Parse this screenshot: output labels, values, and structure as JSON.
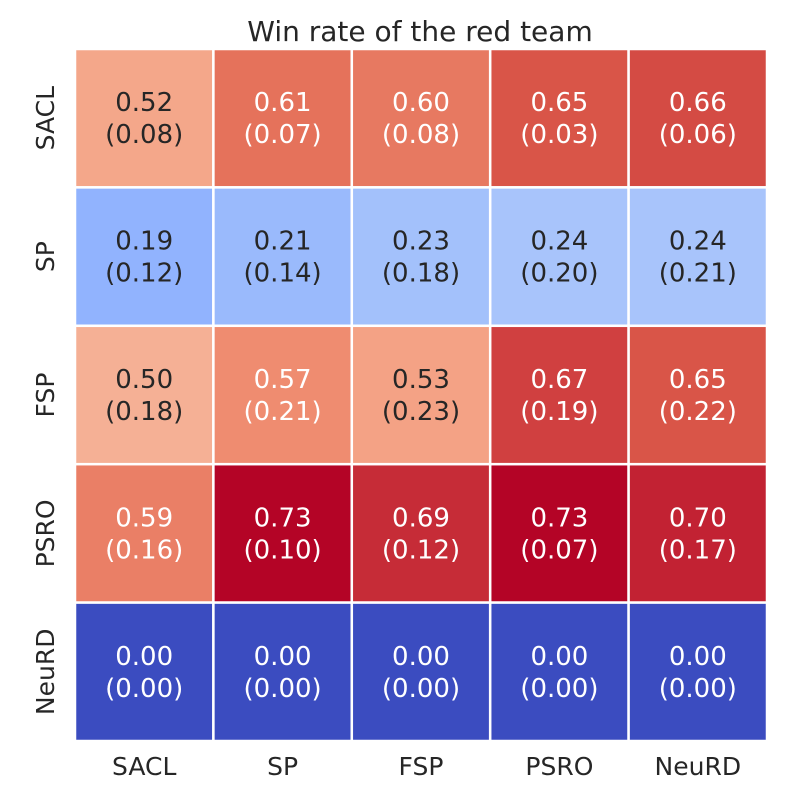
{
  "chart_data": {
    "type": "heatmap",
    "title": "Win rate of the red team",
    "xlabel": "",
    "ylabel": "",
    "x_categories": [
      "SACL",
      "SP",
      "FSP",
      "PSRO",
      "NeuRD"
    ],
    "y_categories": [
      "SACL",
      "SP",
      "FSP",
      "PSRO",
      "NeuRD"
    ],
    "values": [
      [
        0.52,
        0.61,
        0.6,
        0.65,
        0.66
      ],
      [
        0.19,
        0.21,
        0.23,
        0.24,
        0.24
      ],
      [
        0.5,
        0.57,
        0.53,
        0.67,
        0.65
      ],
      [
        0.59,
        0.73,
        0.69,
        0.73,
        0.7
      ],
      [
        0.0,
        0.0,
        0.0,
        0.0,
        0.0
      ]
    ],
    "std": [
      [
        0.08,
        0.07,
        0.08,
        0.03,
        0.06
      ],
      [
        0.12,
        0.14,
        0.18,
        0.2,
        0.21
      ],
      [
        0.18,
        0.21,
        0.23,
        0.19,
        0.22
      ],
      [
        0.16,
        0.1,
        0.12,
        0.07,
        0.17
      ],
      [
        0.0,
        0.0,
        0.0,
        0.0,
        0.0
      ]
    ],
    "colormap": "coolwarm",
    "value_range": [
      0.0,
      0.73
    ],
    "colorbar": false,
    "grid_color": "#ffffff"
  }
}
